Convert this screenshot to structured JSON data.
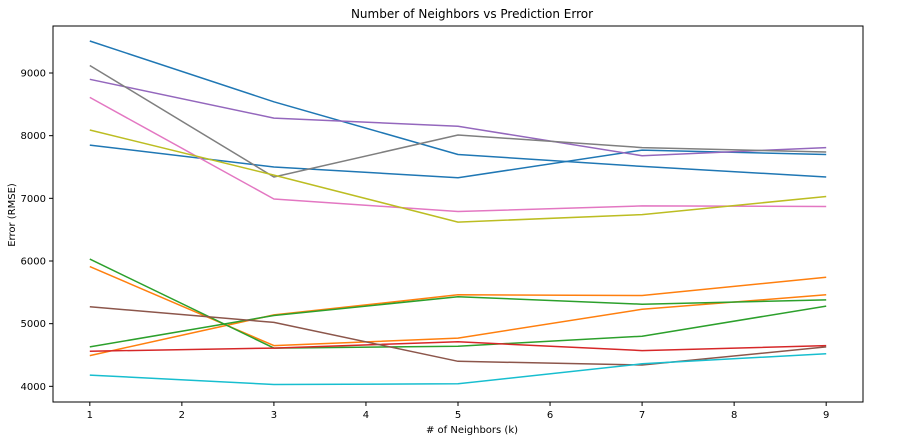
{
  "chart_data": {
    "type": "line",
    "title": "Number of Neighbors vs Prediction Error",
    "xlabel": "# of Neighbors (k)",
    "ylabel": "Error (RMSE)",
    "xlim": [
      0.6,
      9.4
    ],
    "ylim": [
      3750,
      9750
    ],
    "xticks": [
      1,
      2,
      3,
      4,
      5,
      6,
      7,
      8,
      9
    ],
    "yticks": [
      4000,
      5000,
      6000,
      7000,
      8000,
      9000
    ],
    "grid": false,
    "x": [
      1,
      3,
      5,
      7,
      9
    ],
    "series": [
      {
        "color": "#1f77b4",
        "values": [
          9510,
          8540,
          7700,
          7510,
          7340
        ]
      },
      {
        "color": "#1f77b4",
        "values": [
          7850,
          7500,
          7330,
          7770,
          7700
        ]
      },
      {
        "color": "#ff7f0e",
        "values": [
          5910,
          4650,
          4770,
          5230,
          5460
        ]
      },
      {
        "color": "#ff7f0e",
        "values": [
          4490,
          5140,
          5460,
          5450,
          5740
        ]
      },
      {
        "color": "#2ca02c",
        "values": [
          6030,
          4610,
          4640,
          4800,
          5280
        ]
      },
      {
        "color": "#2ca02c",
        "values": [
          4630,
          5130,
          5430,
          5310,
          5380
        ]
      },
      {
        "color": "#d62728",
        "values": [
          4560,
          4610,
          4710,
          4570,
          4650
        ]
      },
      {
        "color": "#9467bd",
        "values": [
          8900,
          8280,
          8150,
          7680,
          7810
        ]
      },
      {
        "color": "#8c564b",
        "values": [
          5270,
          5020,
          4400,
          4340,
          4630
        ]
      },
      {
        "color": "#e377c2",
        "values": [
          8610,
          6990,
          6790,
          6880,
          6870
        ]
      },
      {
        "color": "#7f7f7f",
        "values": [
          9120,
          7340,
          8010,
          7810,
          7740
        ]
      },
      {
        "color": "#bcbd22",
        "values": [
          8090,
          7370,
          6620,
          6740,
          7030
        ]
      },
      {
        "color": "#17becf",
        "values": [
          4180,
          4030,
          4040,
          4360,
          4520
        ]
      }
    ]
  }
}
